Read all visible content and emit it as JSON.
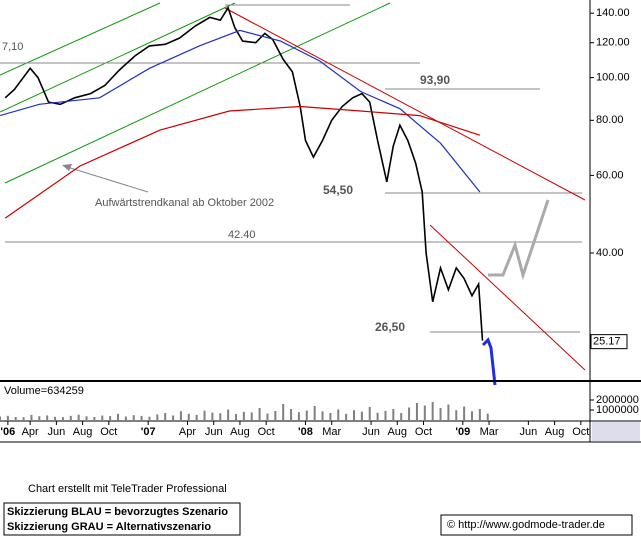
{
  "chart_data": [
    {
      "type": "line",
      "log_scale": true,
      "xlim": [
        0.7,
        45.7
      ],
      "ylim": [
        20.6,
        150
      ],
      "yticks": [
        {
          "value": 140,
          "label": "140.00"
        },
        {
          "value": 120,
          "label": "120.00"
        },
        {
          "value": 100,
          "label": "100.00"
        },
        {
          "value": 80,
          "label": "80.00"
        },
        {
          "value": 60,
          "label": "60.00"
        },
        {
          "value": 40,
          "label": "40.00"
        }
      ],
      "last_price": 25.17,
      "annotations": [
        "7,10",
        "93,90",
        "54,50",
        "42.40",
        "26,50",
        "Aufwärtstrendkanal ab Oktober 2002"
      ],
      "series": [
        {
          "color": "#000000",
          "x": [
            1.1,
            1.8,
            3.0,
            3.6,
            4.4,
            5.3,
            6.4,
            7.6,
            8.7,
            9.8,
            11.0,
            12.1,
            13.3,
            14.4,
            15.6,
            16.7,
            17.5,
            18.1,
            18.6,
            19.2,
            20.2,
            20.9,
            21.5,
            22.3,
            23.0,
            23.6,
            24.0,
            24.6,
            25.3,
            26.0,
            26.8,
            27.6,
            28.3,
            28.9,
            29.5,
            30.2,
            30.7,
            31.2,
            31.8,
            32.4,
            32.9,
            33.2,
            33.7,
            34.3,
            34.9,
            35.5,
            36.1,
            36.7,
            37.2,
            37.5
          ],
          "values": [
            90,
            94,
            105,
            100,
            88,
            87,
            90,
            92,
            96,
            104,
            112,
            118,
            119,
            123,
            131,
            137,
            135,
            144,
            130,
            121,
            120,
            126,
            122,
            110,
            103,
            86,
            72,
            66,
            72,
            80,
            86,
            90,
            92,
            88,
            72,
            58,
            70,
            78,
            72,
            64,
            55,
            40,
            31,
            37,
            33,
            37,
            35,
            32,
            34,
            25.3
          ]
        },
        {
          "color": "#1f2fbf",
          "x": [
            0.7,
            3.7,
            8.3,
            12.1,
            15.9,
            19.0,
            22.1,
            25.1,
            28.2,
            31.2,
            34.3,
            37.3
          ],
          "values": [
            82,
            87,
            90,
            105,
            118,
            128,
            121,
            109,
            93,
            85,
            71,
            55
          ]
        },
        {
          "color": "#cc0000",
          "x": [
            1.1,
            6.8,
            12.9,
            18.2,
            23.6,
            28.2,
            32.7,
            37.3
          ],
          "values": [
            48,
            63,
            76,
            84,
            86,
            84,
            82,
            74
          ]
        }
      ]
    },
    {
      "type": "bar",
      "label": "Volume=634259",
      "color": "#808080",
      "xlim": [
        0.7,
        45.7
      ],
      "ylim": [
        0,
        3700000
      ],
      "yticks": [
        2000000,
        1000000
      ],
      "xticks": [
        {
          "value": 1.3,
          "label": "'06"
        },
        {
          "value": 3,
          "label": "Apr"
        },
        {
          "value": 5,
          "label": "Jun"
        },
        {
          "value": 7,
          "label": "Aug"
        },
        {
          "value": 9,
          "label": "Oct"
        },
        {
          "value": 12,
          "label": "'07"
        },
        {
          "value": 15,
          "label": "Apr"
        },
        {
          "value": 17,
          "label": "Jun"
        },
        {
          "value": 19,
          "label": "Aug"
        },
        {
          "value": 21,
          "label": "Oct"
        },
        {
          "value": 24,
          "label": "'08"
        },
        {
          "value": 26,
          "label": "Mar"
        },
        {
          "value": 29,
          "label": "Jun"
        },
        {
          "value": 31,
          "label": "Aug"
        },
        {
          "value": 33,
          "label": "Oct"
        },
        {
          "value": 36,
          "label": "'09"
        },
        {
          "value": 38,
          "label": "Mar"
        },
        {
          "value": 41,
          "label": "Jun"
        },
        {
          "value": 43,
          "label": "Aug"
        },
        {
          "value": 45,
          "label": "Oct"
        }
      ],
      "x": [
        0.7,
        1.3,
        1.9,
        2.5,
        3.1,
        3.7,
        4.3,
        4.9,
        5.5,
        6.1,
        6.7,
        7.3,
        7.9,
        8.5,
        9.1,
        9.7,
        10.3,
        10.9,
        11.5,
        12.1,
        12.7,
        13.3,
        13.9,
        14.5,
        15.1,
        15.7,
        16.3,
        16.9,
        17.5,
        18.1,
        18.7,
        19.3,
        19.9,
        20.5,
        21.1,
        21.7,
        22.3,
        22.9,
        23.5,
        24.1,
        24.7,
        25.3,
        25.9,
        26.5,
        27.1,
        27.7,
        28.3,
        28.9,
        29.5,
        30.1,
        30.7,
        31.3,
        31.9,
        32.5,
        33.1,
        33.7,
        34.3,
        34.9,
        35.5,
        36.1,
        36.7,
        37.3,
        37.9
      ],
      "values": [
        350000,
        420000,
        300000,
        280000,
        510000,
        380000,
        460000,
        320000,
        290000,
        410000,
        530000,
        370000,
        300000,
        440000,
        390000,
        620000,
        350000,
        480000,
        410000,
        330000,
        560000,
        700000,
        450000,
        880000,
        620000,
        510000,
        930000,
        740000,
        680000,
        1050000,
        590000,
        820000,
        760000,
        1200000,
        650000,
        900000,
        1600000,
        1100000,
        780000,
        950000,
        1400000,
        860000,
        700000,
        1050000,
        620000,
        980000,
        840000,
        1300000,
        720000,
        910000,
        1100000,
        690000,
        1250000,
        1700000,
        1450000,
        1800000,
        1200000,
        1550000,
        980000,
        1350000,
        870000,
        1100000,
        640000
      ]
    }
  ],
  "footer": {
    "credit": "Chart erstellt mit TeleTrader Professional",
    "notes": [
      "Skizzierung BLAU = bevorzugtes Szenario",
      "Skizzierung GRAU = Alternativszenario"
    ],
    "copyright": "© http://www.godmode-trader.de"
  }
}
